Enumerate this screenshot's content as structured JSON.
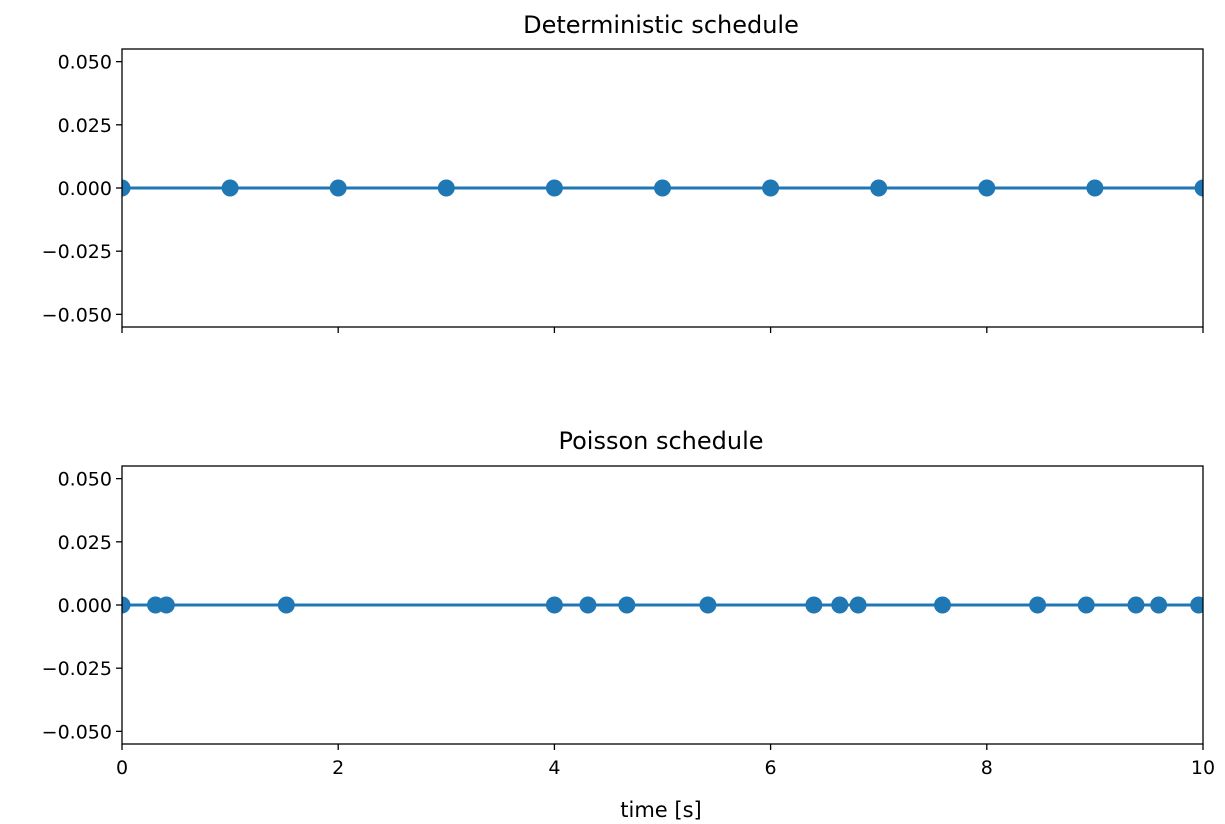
{
  "colors": {
    "series": "#1f77b4",
    "axes": "#000000",
    "background": "#ffffff"
  },
  "chart_data": [
    {
      "type": "scatter",
      "title": "Deterministic schedule",
      "xlabel": "",
      "ylabel": "",
      "xlim": [
        0,
        10
      ],
      "ylim": [
        -0.055,
        0.055
      ],
      "yticks": [
        "0.050",
        "0.025",
        "0.000",
        "−0.025",
        "−0.050"
      ],
      "ytick_values": [
        0.05,
        0.025,
        0,
        -0.025,
        -0.05
      ],
      "xtick_values": [
        0,
        2,
        4,
        6,
        8,
        10
      ],
      "xticklabels_visible": false,
      "grid": false,
      "connected_line": true,
      "x": [
        0,
        1,
        2,
        3,
        4,
        5,
        6,
        7,
        8,
        9,
        10
      ],
      "y": [
        0,
        0,
        0,
        0,
        0,
        0,
        0,
        0,
        0,
        0,
        0
      ]
    },
    {
      "type": "scatter",
      "title": "Poisson schedule",
      "xlabel": "time [s]",
      "ylabel": "",
      "xlim": [
        0,
        10
      ],
      "ylim": [
        -0.055,
        0.055
      ],
      "yticks": [
        "0.050",
        "0.025",
        "0.000",
        "−0.025",
        "−0.050"
      ],
      "ytick_values": [
        0.05,
        0.025,
        0,
        -0.025,
        -0.05
      ],
      "xticks": [
        "0",
        "2",
        "4",
        "6",
        "8",
        "10"
      ],
      "xtick_values": [
        0,
        2,
        4,
        6,
        8,
        10
      ],
      "xticklabels_visible": true,
      "grid": false,
      "connected_line": true,
      "x": [
        0,
        0.31,
        0.41,
        1.52,
        4.0,
        4.31,
        4.67,
        5.42,
        6.4,
        6.64,
        6.81,
        7.59,
        8.47,
        8.92,
        9.38,
        9.59,
        9.96
      ],
      "y": [
        0,
        0,
        0,
        0,
        0,
        0,
        0,
        0,
        0,
        0,
        0,
        0,
        0,
        0,
        0,
        0,
        0
      ]
    }
  ]
}
